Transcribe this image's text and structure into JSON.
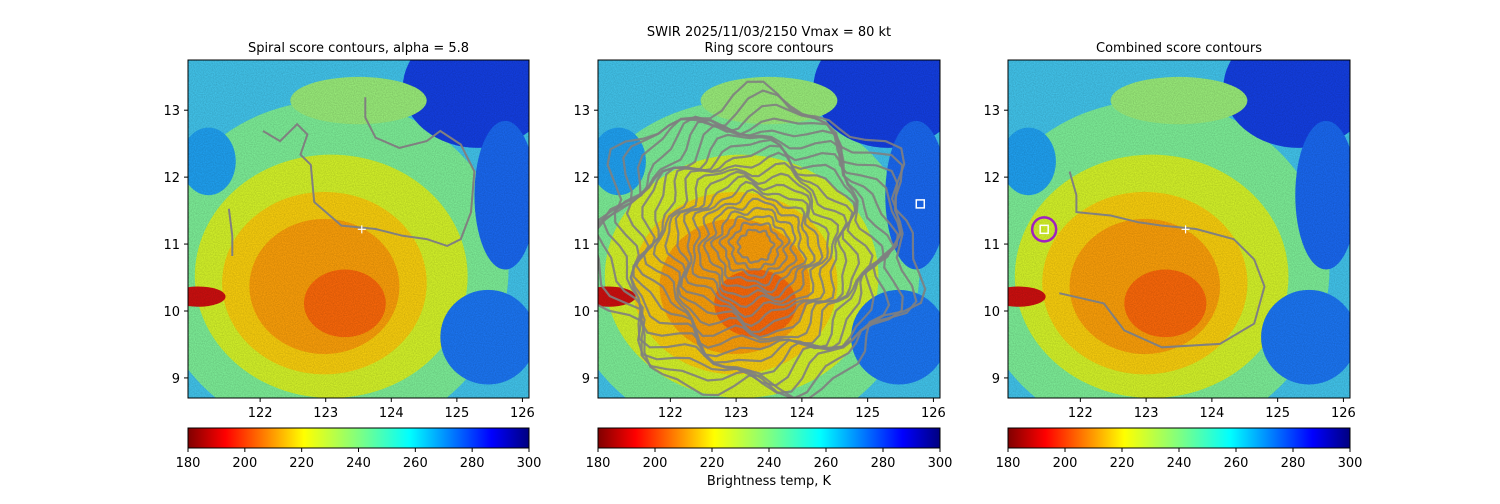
{
  "suptitle_line": "SWIR  2025/11/03/2150    Vmax = 80 kt",
  "colorbar_label": "Brightness temp, K",
  "colors": {
    "contour": "#808080",
    "center_marker": "#ffffff",
    "best_marker": "#ffffff",
    "best_circle": "#a020c0"
  },
  "chart_data": [
    {
      "type": "heatmap",
      "title": "Spiral score contours, alpha =  5.8",
      "x_ticks": [
        "122",
        "123",
        "124",
        "125",
        "126"
      ],
      "y_ticks": [
        "9",
        "10",
        "11",
        "12",
        "13"
      ],
      "xlim": [
        120.9,
        126.1
      ],
      "ylim": [
        8.7,
        13.75
      ],
      "center_marker": {
        "x": 123.55,
        "y": 11.22
      },
      "colorbar": {
        "range": [
          180,
          300
        ],
        "ticks": [
          "180",
          "200",
          "220",
          "240",
          "260",
          "280",
          "300"
        ],
        "colormap": "jet_r"
      }
    },
    {
      "type": "heatmap",
      "title": "Ring score contours",
      "x_ticks": [
        "122",
        "123",
        "124",
        "125",
        "126"
      ],
      "y_ticks": [
        "9",
        "10",
        "11",
        "12",
        "13"
      ],
      "xlim": [
        120.9,
        126.1
      ],
      "ylim": [
        8.7,
        13.75
      ],
      "best_marker": {
        "x": 125.8,
        "y": 11.6
      },
      "colorbar": {
        "range": [
          180,
          300
        ],
        "ticks": [
          "180",
          "200",
          "220",
          "240",
          "260",
          "280",
          "300"
        ],
        "colormap": "jet_r"
      }
    },
    {
      "type": "heatmap",
      "title": "Combined score contours",
      "x_ticks": [
        "122",
        "123",
        "124",
        "125",
        "126"
      ],
      "y_ticks": [
        "9",
        "10",
        "11",
        "12",
        "13"
      ],
      "xlim": [
        120.9,
        126.1
      ],
      "ylim": [
        8.7,
        13.75
      ],
      "center_marker": {
        "x": 123.6,
        "y": 11.22
      },
      "best_marker": {
        "x": 121.45,
        "y": 11.22
      },
      "colorbar": {
        "range": [
          180,
          300
        ],
        "ticks": [
          "180",
          "200",
          "220",
          "240",
          "260",
          "280",
          "300"
        ],
        "colormap": "jet_r"
      }
    }
  ]
}
